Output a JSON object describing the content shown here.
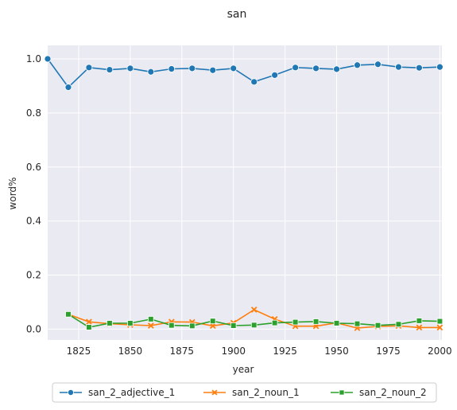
{
  "chart_data": {
    "type": "line",
    "title": "san",
    "xlabel": "year",
    "ylabel": "word%",
    "xlim": [
      1810,
      2001
    ],
    "ylim": [
      -0.04,
      1.05
    ],
    "xticks": [
      1825,
      1850,
      1875,
      1900,
      1925,
      1950,
      1975,
      2000
    ],
    "yticks": [
      0.0,
      0.2,
      0.4,
      0.6,
      0.8,
      1.0
    ],
    "grid": true,
    "legend_position": "bottom",
    "series": [
      {
        "name": "san_2_adjective_1",
        "color": "#1f77b4",
        "marker": "circle",
        "x": [
          1810,
          1820,
          1830,
          1840,
          1850,
          1860,
          1870,
          1880,
          1890,
          1900,
          1910,
          1920,
          1930,
          1940,
          1950,
          1960,
          1970,
          1980,
          1990,
          2000
        ],
        "values": [
          1.0,
          0.895,
          0.968,
          0.96,
          0.965,
          0.952,
          0.963,
          0.965,
          0.958,
          0.965,
          0.915,
          0.94,
          0.968,
          0.965,
          0.962,
          0.977,
          0.98,
          0.97,
          0.967,
          0.97
        ]
      },
      {
        "name": "san_2_noun_1",
        "color": "#ff7f0e",
        "marker": "x",
        "x": [
          1820,
          1830,
          1840,
          1850,
          1860,
          1870,
          1880,
          1890,
          1900,
          1910,
          1920,
          1930,
          1940,
          1950,
          1960,
          1970,
          1980,
          1990,
          2000
        ],
        "values": [
          0.055,
          0.027,
          0.02,
          0.016,
          0.013,
          0.027,
          0.026,
          0.012,
          0.023,
          0.072,
          0.037,
          0.011,
          0.011,
          0.023,
          0.004,
          0.01,
          0.012,
          0.006,
          0.006
        ]
      },
      {
        "name": "san_2_noun_2",
        "color": "#2ca02c",
        "marker": "square",
        "x": [
          1820,
          1830,
          1840,
          1850,
          1860,
          1870,
          1880,
          1890,
          1900,
          1910,
          1920,
          1930,
          1940,
          1950,
          1960,
          1970,
          1980,
          1990,
          2000
        ],
        "values": [
          0.055,
          0.007,
          0.022,
          0.022,
          0.037,
          0.014,
          0.012,
          0.03,
          0.013,
          0.015,
          0.023,
          0.026,
          0.028,
          0.022,
          0.02,
          0.014,
          0.018,
          0.031,
          0.029
        ]
      }
    ]
  }
}
